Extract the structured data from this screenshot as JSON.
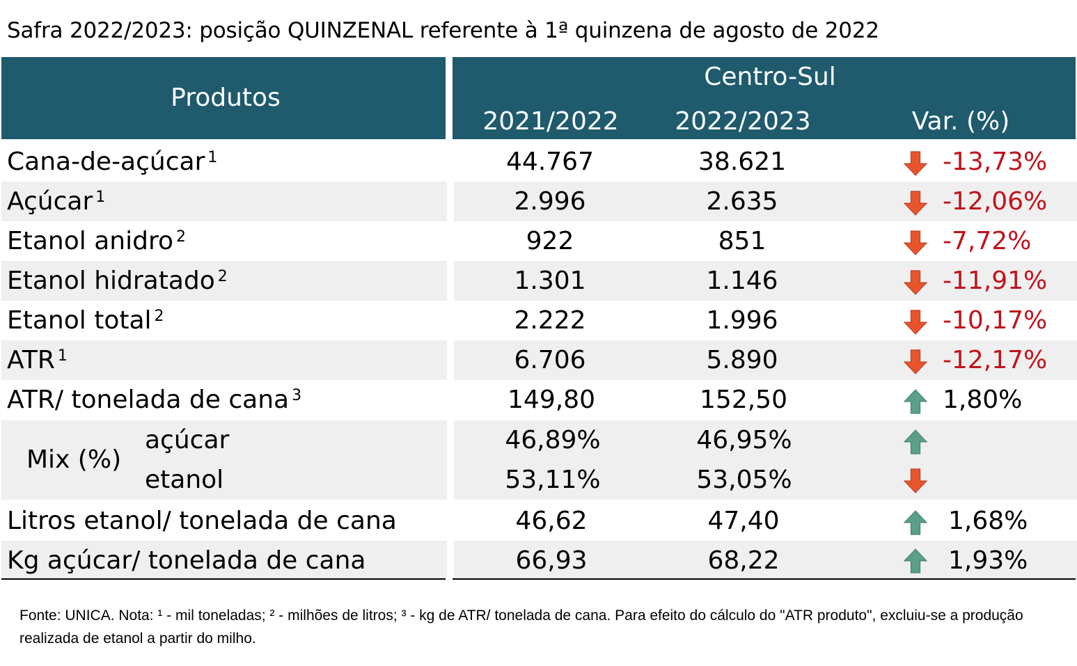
{
  "title": "Safra 2022/2023: posição QUINZENAL referente à 1ª quinzena de agosto de 2022",
  "header": {
    "produtos": "Produtos",
    "region": "Centro-Sul",
    "col_a": "2021/2022",
    "col_b": "2022/2023",
    "col_var": "Var. (%)"
  },
  "rows": [
    {
      "label": "Cana-de-açúcar",
      "sup": "1",
      "a": "44.767",
      "b": "38.621",
      "var": "-13,73%",
      "dir": "down"
    },
    {
      "label": "Açúcar",
      "sup": "1",
      "a": "2.996",
      "b": "2.635",
      "var": "-12,06%",
      "dir": "down"
    },
    {
      "label": "Etanol anidro",
      "sup": "2",
      "a": "922",
      "b": "851",
      "var": "-7,72%",
      "dir": "down"
    },
    {
      "label": "Etanol hidratado",
      "sup": "2",
      "a": "1.301",
      "b": "1.146",
      "var": "-11,91%",
      "dir": "down"
    },
    {
      "label": "Etanol total",
      "sup": "2",
      "a": "2.222",
      "b": "1.996",
      "var": "-10,17%",
      "dir": "down"
    },
    {
      "label": "ATR",
      "sup": "1",
      "a": "6.706",
      "b": "5.890",
      "var": "-12,17%",
      "dir": "down"
    },
    {
      "label": "ATR/ tonelada de cana",
      "sup": "3",
      "a": "149,80",
      "b": "152,50",
      "var": "1,80%",
      "dir": "up"
    }
  ],
  "mix": {
    "label": "Mix (%)",
    "acucar": {
      "label": "açúcar",
      "a": "46,89%",
      "b": "46,95%",
      "dir": "up"
    },
    "etanol": {
      "label": "etanol",
      "a": "53,11%",
      "b": "53,05%",
      "dir": "down"
    }
  },
  "rows2": [
    {
      "label": "Litros etanol/ tonelada de cana",
      "a": "46,62",
      "b": "47,40",
      "var": "1,68%",
      "dir": "up"
    },
    {
      "label": "Kg açúcar/ tonelada de cana",
      "a": "66,93",
      "b": "68,22",
      "var": "1,93%",
      "dir": "up"
    }
  ],
  "colors": {
    "header": "#1f5a6d",
    "negative": "#c0131b",
    "arrow_down": "#e8552c",
    "arrow_up": "#5b9e8a"
  },
  "note": "Fonte: UNICA. Nota: ¹ - mil toneladas; ² - milhões de litros; ³ - kg de ATR/ tonelada de cana. Para efeito do cálculo do \"ATR produto\", excluiu-se a produção realizada de etanol a partir do milho."
}
